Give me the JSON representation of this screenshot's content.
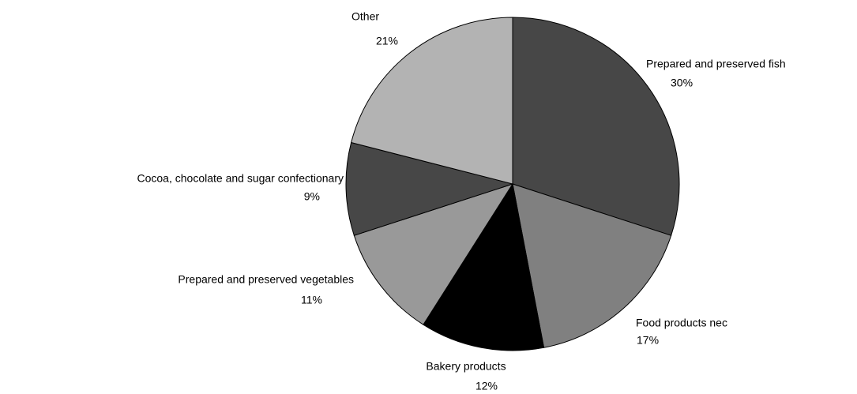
{
  "chart_data": {
    "type": "pie",
    "categories": [
      "Prepared and preserved fish",
      "Food products nec",
      "Bakery products",
      "Prepared and preserved vegetables",
      "Cocoa, chocolate and sugar confectionary",
      "Other"
    ],
    "values": [
      30,
      17,
      12,
      11,
      9,
      21
    ],
    "value_labels": [
      "30%",
      "17%",
      "12%",
      "11%",
      "9%",
      "21%"
    ],
    "colors": [
      "#474747",
      "#808080",
      "#000000",
      "#999999",
      "#474747",
      "#b3b3b3"
    ]
  }
}
